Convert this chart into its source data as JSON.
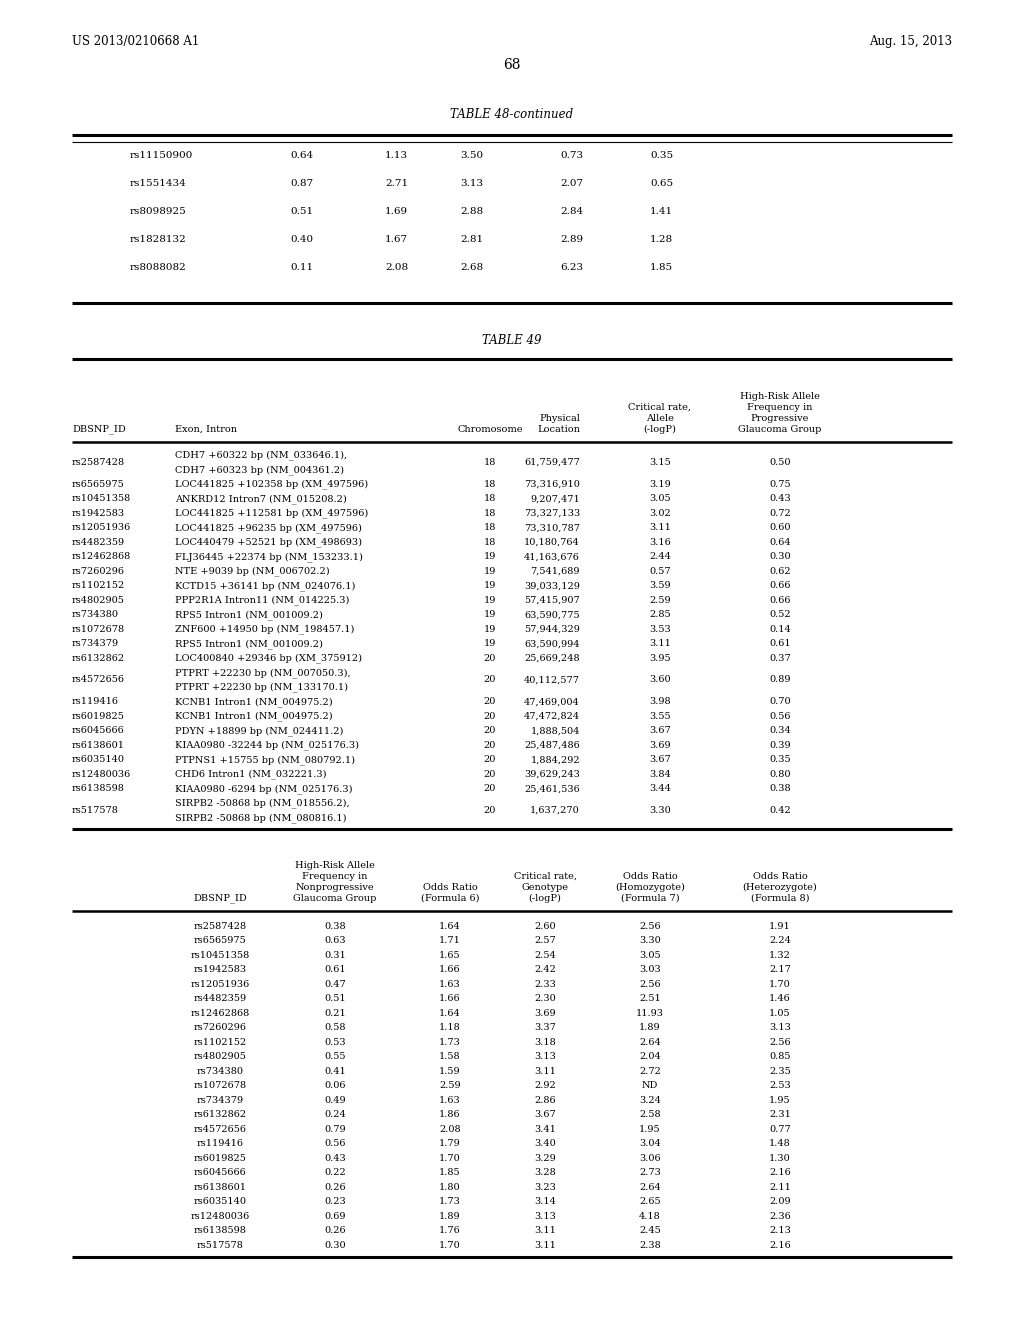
{
  "header_left": "US 2013/0210668 A1",
  "header_right": "Aug. 15, 2013",
  "page_number": "68",
  "table48_title": "TABLE 48-continued",
  "table48_rows": [
    [
      "rs11150900",
      "0.64",
      "1.13",
      "3.50",
      "0.73",
      "0.35"
    ],
    [
      "rs1551434",
      "0.87",
      "2.71",
      "3.13",
      "2.07",
      "0.65"
    ],
    [
      "rs8098925",
      "0.51",
      "1.69",
      "2.88",
      "2.84",
      "1.41"
    ],
    [
      "rs1828132",
      "0.40",
      "1.67",
      "2.81",
      "2.89",
      "1.28"
    ],
    [
      "rs8088082",
      "0.11",
      "2.08",
      "2.68",
      "6.23",
      "1.85"
    ]
  ],
  "table49_title": "TABLE 49",
  "table49_col_headers": [
    "DBSNP_ID",
    "Exon, Intron",
    "Chromosome",
    "Physical\nLocation",
    "Critical rate,\nAllele\n(-logP)",
    "High-Risk Allele\nFrequency in\nProgressive\nGlaucoma Group"
  ],
  "table49_rows": [
    [
      "rs2587428",
      "CDH7 +60322 bp (NM_033646.1),\nCDH7 +60323 bp (NM_004361.2)",
      "18",
      "61,759,477",
      "3.15",
      "0.50"
    ],
    [
      "rs6565975",
      "LOC441825 +102358 bp (XM_497596)",
      "18",
      "73,316,910",
      "3.19",
      "0.75"
    ],
    [
      "rs10451358",
      "ANKRD12 Intron7 (NM_015208.2)",
      "18",
      "9,207,471",
      "3.05",
      "0.43"
    ],
    [
      "rs1942583",
      "LOC441825 +112581 bp (XM_497596)",
      "18",
      "73,327,133",
      "3.02",
      "0.72"
    ],
    [
      "rs12051936",
      "LOC441825 +96235 bp (XM_497596)",
      "18",
      "73,310,787",
      "3.11",
      "0.60"
    ],
    [
      "rs4482359",
      "LOC440479 +52521 bp (XM_498693)",
      "18",
      "10,180,764",
      "3.16",
      "0.64"
    ],
    [
      "rs12462868",
      "FLJ36445 +22374 bp (NM_153233.1)",
      "19",
      "41,163,676",
      "2.44",
      "0.30"
    ],
    [
      "rs7260296",
      "NTE +9039 bp (NM_006702.2)",
      "19",
      "7,541,689",
      "0.57",
      "0.62"
    ],
    [
      "rs1102152",
      "KCTD15 +36141 bp (NM_024076.1)",
      "19",
      "39,033,129",
      "3.59",
      "0.66"
    ],
    [
      "rs4802905",
      "PPP2R1A Intron11 (NM_014225.3)",
      "19",
      "57,415,907",
      "2.59",
      "0.66"
    ],
    [
      "rs734380",
      "RPS5 Intron1 (NM_001009.2)",
      "19",
      "63,590,775",
      "2.85",
      "0.52"
    ],
    [
      "rs1072678",
      "ZNF600 +14950 bp (NM_198457.1)",
      "19",
      "57,944,329",
      "3.53",
      "0.14"
    ],
    [
      "rs734379",
      "RPS5 Intron1 (NM_001009.2)",
      "19",
      "63,590,994",
      "3.11",
      "0.61"
    ],
    [
      "rs6132862",
      "LOC400840 +29346 bp (XM_375912)",
      "20",
      "25,669,248",
      "3.95",
      "0.37"
    ],
    [
      "rs4572656",
      "PTPRT +22230 bp (NM_007050.3),\nPTPRT +22230 bp (NM_133170.1)",
      "20",
      "40,112,577",
      "3.60",
      "0.89"
    ],
    [
      "rs119416",
      "KCNB1 Intron1 (NM_004975.2)",
      "20",
      "47,469,004",
      "3.98",
      "0.70"
    ],
    [
      "rs6019825",
      "KCNB1 Intron1 (NM_004975.2)",
      "20",
      "47,472,824",
      "3.55",
      "0.56"
    ],
    [
      "rs6045666",
      "PDYN +18899 bp (NM_024411.2)",
      "20",
      "1,888,504",
      "3.67",
      "0.34"
    ],
    [
      "rs6138601",
      "KIAA0980 -32244 bp (NM_025176.3)",
      "20",
      "25,487,486",
      "3.69",
      "0.39"
    ],
    [
      "rs6035140",
      "PTPNS1 +15755 bp (NM_080792.1)",
      "20",
      "1,884,292",
      "3.67",
      "0.35"
    ],
    [
      "rs12480036",
      "CHD6 Intron1 (NM_032221.3)",
      "20",
      "39,629,243",
      "3.84",
      "0.80"
    ],
    [
      "rs6138598",
      "KIAA0980 -6294 bp (NM_025176.3)",
      "20",
      "25,461,536",
      "3.44",
      "0.38"
    ],
    [
      "rs517578",
      "SIRPB2 -50868 bp (NM_018556.2),\nSIRPB2 -50868 bp (NM_080816.1)",
      "20",
      "1,637,270",
      "3.30",
      "0.42"
    ]
  ],
  "table49b_col_headers": [
    "DBSNP_ID",
    "High-Risk Allele\nFrequency in\nNonprogressive\nGlaucoma Group",
    "Odds Ratio\n(Formula 6)",
    "Critical rate,\nGenotype\n(-logP)",
    "Odds Ratio\n(Homozygote)\n(Formula 7)",
    "Odds Ratio\n(Heterozygote)\n(Formula 8)"
  ],
  "table49b_rows": [
    [
      "rs2587428",
      "0.38",
      "1.64",
      "2.60",
      "2.56",
      "1.91"
    ],
    [
      "rs6565975",
      "0.63",
      "1.71",
      "2.57",
      "3.30",
      "2.24"
    ],
    [
      "rs10451358",
      "0.31",
      "1.65",
      "2.54",
      "3.05",
      "1.32"
    ],
    [
      "rs1942583",
      "0.61",
      "1.66",
      "2.42",
      "3.03",
      "2.17"
    ],
    [
      "rs12051936",
      "0.47",
      "1.63",
      "2.33",
      "2.56",
      "1.70"
    ],
    [
      "rs4482359",
      "0.51",
      "1.66",
      "2.30",
      "2.51",
      "1.46"
    ],
    [
      "rs12462868",
      "0.21",
      "1.64",
      "3.69",
      "11.93",
      "1.05"
    ],
    [
      "rs7260296",
      "0.58",
      "1.18",
      "3.37",
      "1.89",
      "3.13"
    ],
    [
      "rs1102152",
      "0.53",
      "1.73",
      "3.18",
      "2.64",
      "2.56"
    ],
    [
      "rs4802905",
      "0.55",
      "1.58",
      "3.13",
      "2.04",
      "0.85"
    ],
    [
      "rs734380",
      "0.41",
      "1.59",
      "3.11",
      "2.72",
      "2.35"
    ],
    [
      "rs1072678",
      "0.06",
      "2.59",
      "2.92",
      "ND",
      "2.53"
    ],
    [
      "rs734379",
      "0.49",
      "1.63",
      "2.86",
      "3.24",
      "1.95"
    ],
    [
      "rs6132862",
      "0.24",
      "1.86",
      "3.67",
      "2.58",
      "2.31"
    ],
    [
      "rs4572656",
      "0.79",
      "2.08",
      "3.41",
      "1.95",
      "0.77"
    ],
    [
      "rs119416",
      "0.56",
      "1.79",
      "3.40",
      "3.04",
      "1.48"
    ],
    [
      "rs6019825",
      "0.43",
      "1.70",
      "3.29",
      "3.06",
      "1.30"
    ],
    [
      "rs6045666",
      "0.22",
      "1.85",
      "3.28",
      "2.73",
      "2.16"
    ],
    [
      "rs6138601",
      "0.26",
      "1.80",
      "3.23",
      "2.64",
      "2.11"
    ],
    [
      "rs6035140",
      "0.23",
      "1.73",
      "3.14",
      "2.65",
      "2.09"
    ],
    [
      "rs12480036",
      "0.69",
      "1.89",
      "3.13",
      "4.18",
      "2.36"
    ],
    [
      "rs6138598",
      "0.26",
      "1.76",
      "3.11",
      "2.45",
      "2.13"
    ],
    [
      "rs517578",
      "0.30",
      "1.70",
      "3.11",
      "2.38",
      "2.16"
    ]
  ]
}
